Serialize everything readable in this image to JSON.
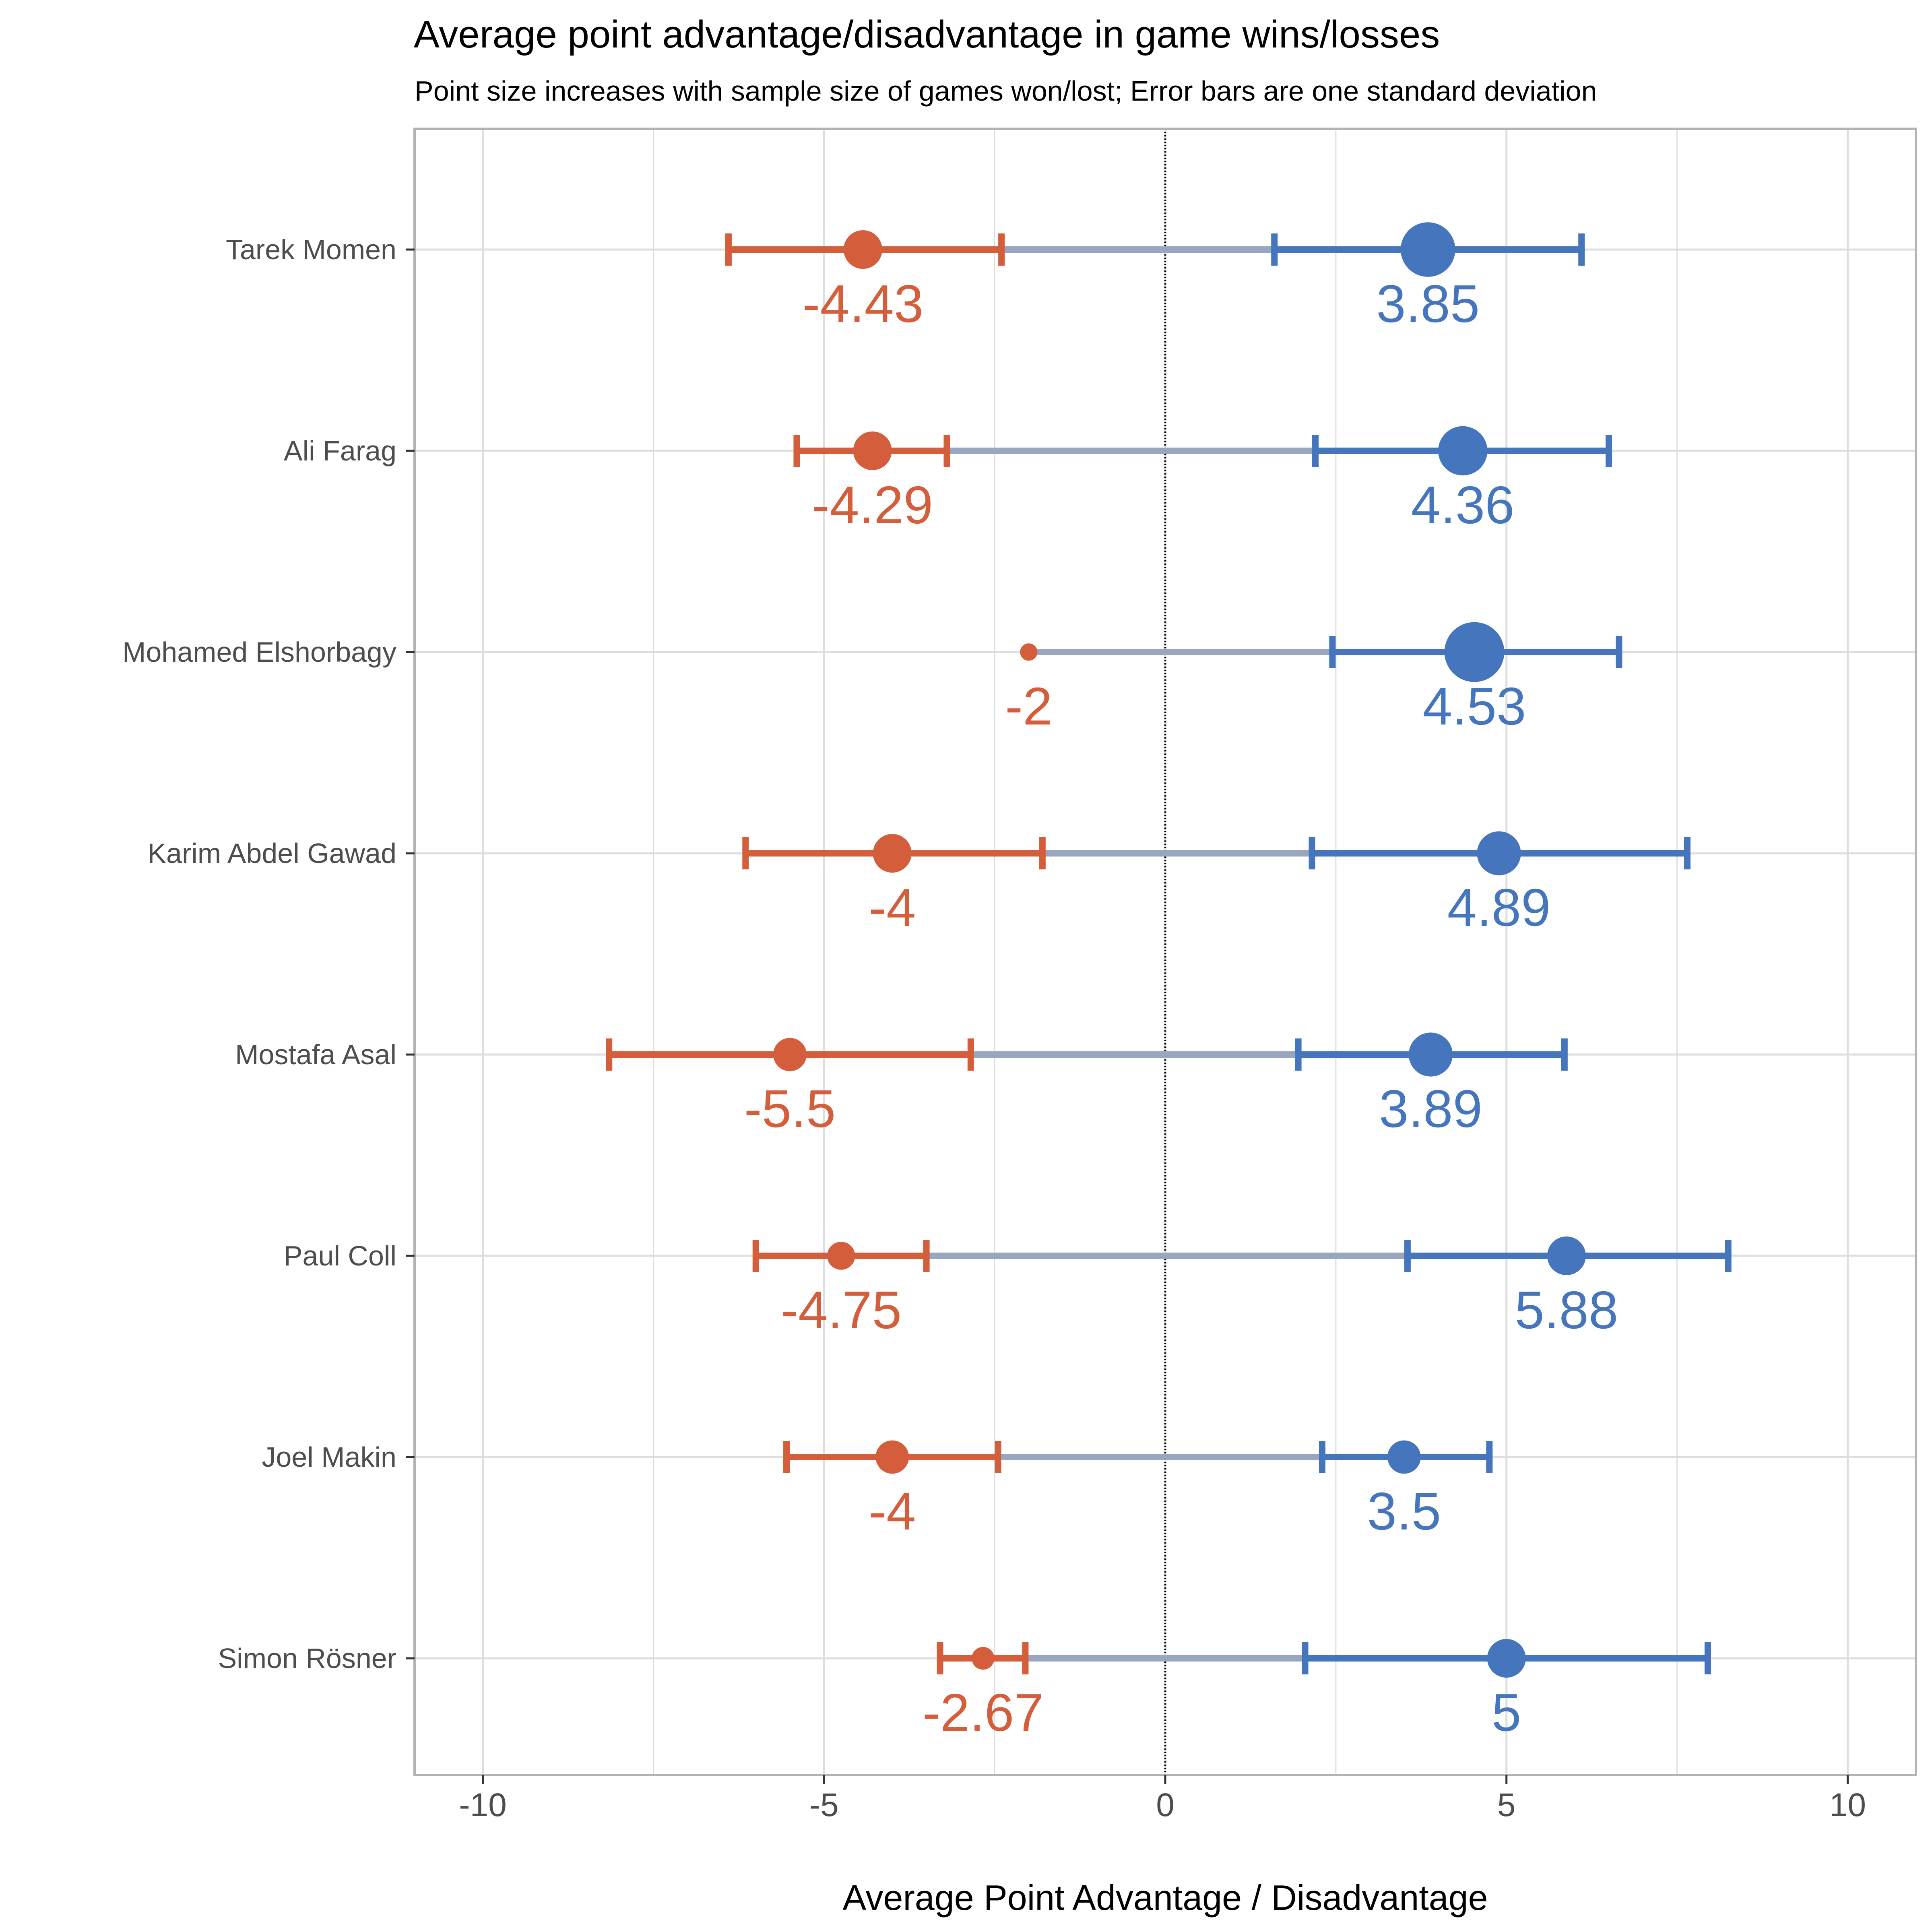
{
  "chart_data": {
    "type": "scatter",
    "title": "Average point advantage/disadvantage in game wins/losses",
    "subtitle": "Point size increases with sample size of games won/lost; Error bars are one standard deviation",
    "xlabel": "Average Point Advantage / Disadvantage",
    "ylabel": "",
    "xlim": [
      -11,
      11
    ],
    "xticks": [
      -10,
      -5,
      0,
      5,
      10
    ],
    "xtick_labels": [
      "-10",
      "-5",
      "0",
      "5",
      "10"
    ],
    "grid": true,
    "reference_line_x": 0,
    "colors": {
      "loss": "#d45e3b",
      "win": "#4575bc",
      "connector": "#99a6c0",
      "grid": "#dedede",
      "panel_border": "#b3b3b3"
    },
    "players": [
      {
        "name": "Tarek Momen",
        "loss": {
          "mean": -4.43,
          "label": "-4.43",
          "sd_low": -6.4,
          "sd_high": -2.4,
          "size": 5
        },
        "win": {
          "mean": 3.85,
          "label": "3.85",
          "sd_low": 1.6,
          "sd_high": 6.1,
          "size": 8
        }
      },
      {
        "name": "Ali Farag",
        "loss": {
          "mean": -4.29,
          "label": "-4.29",
          "sd_low": -5.4,
          "sd_high": -3.2,
          "size": 5
        },
        "win": {
          "mean": 4.36,
          "label": "4.36",
          "sd_low": 2.2,
          "sd_high": 6.5,
          "size": 7
        }
      },
      {
        "name": "Mohamed Elshorbagy",
        "loss": {
          "mean": -2,
          "label": "-2",
          "sd_low": -2,
          "sd_high": -2,
          "size": 1
        },
        "win": {
          "mean": 4.53,
          "label": "4.53",
          "sd_low": 2.45,
          "sd_high": 6.65,
          "size": 9
        }
      },
      {
        "name": "Karim Abdel Gawad",
        "loss": {
          "mean": -4,
          "label": "-4",
          "sd_low": -6.15,
          "sd_high": -1.8,
          "size": 5
        },
        "win": {
          "mean": 4.89,
          "label": "4.89",
          "sd_low": 2.15,
          "sd_high": 7.65,
          "size": 6
        }
      },
      {
        "name": "Mostafa Asal",
        "loss": {
          "mean": -5.5,
          "label": "-5.5",
          "sd_low": -8.15,
          "sd_high": -2.85,
          "size": 4
        },
        "win": {
          "mean": 3.89,
          "label": "3.89",
          "sd_low": 1.95,
          "sd_high": 5.85,
          "size": 6
        }
      },
      {
        "name": "Paul Coll",
        "loss": {
          "mean": -4.75,
          "label": "-4.75",
          "sd_low": -6.0,
          "sd_high": -3.5,
          "size": 3
        },
        "win": {
          "mean": 5.88,
          "label": "5.88",
          "sd_low": 3.55,
          "sd_high": 8.25,
          "size": 5
        }
      },
      {
        "name": "Joel Makin",
        "loss": {
          "mean": -4,
          "label": "-4",
          "sd_low": -5.55,
          "sd_high": -2.45,
          "size": 4
        },
        "win": {
          "mean": 3.5,
          "label": "3.5",
          "sd_low": 2.3,
          "sd_high": 4.75,
          "size": 4
        }
      },
      {
        "name": "Simon Rösner",
        "loss": {
          "mean": -2.67,
          "label": "-2.67",
          "sd_low": -3.3,
          "sd_high": -2.05,
          "size": 2
        },
        "win": {
          "mean": 5,
          "label": "5",
          "sd_low": 2.05,
          "sd_high": 7.95,
          "size": 5
        }
      }
    ]
  }
}
